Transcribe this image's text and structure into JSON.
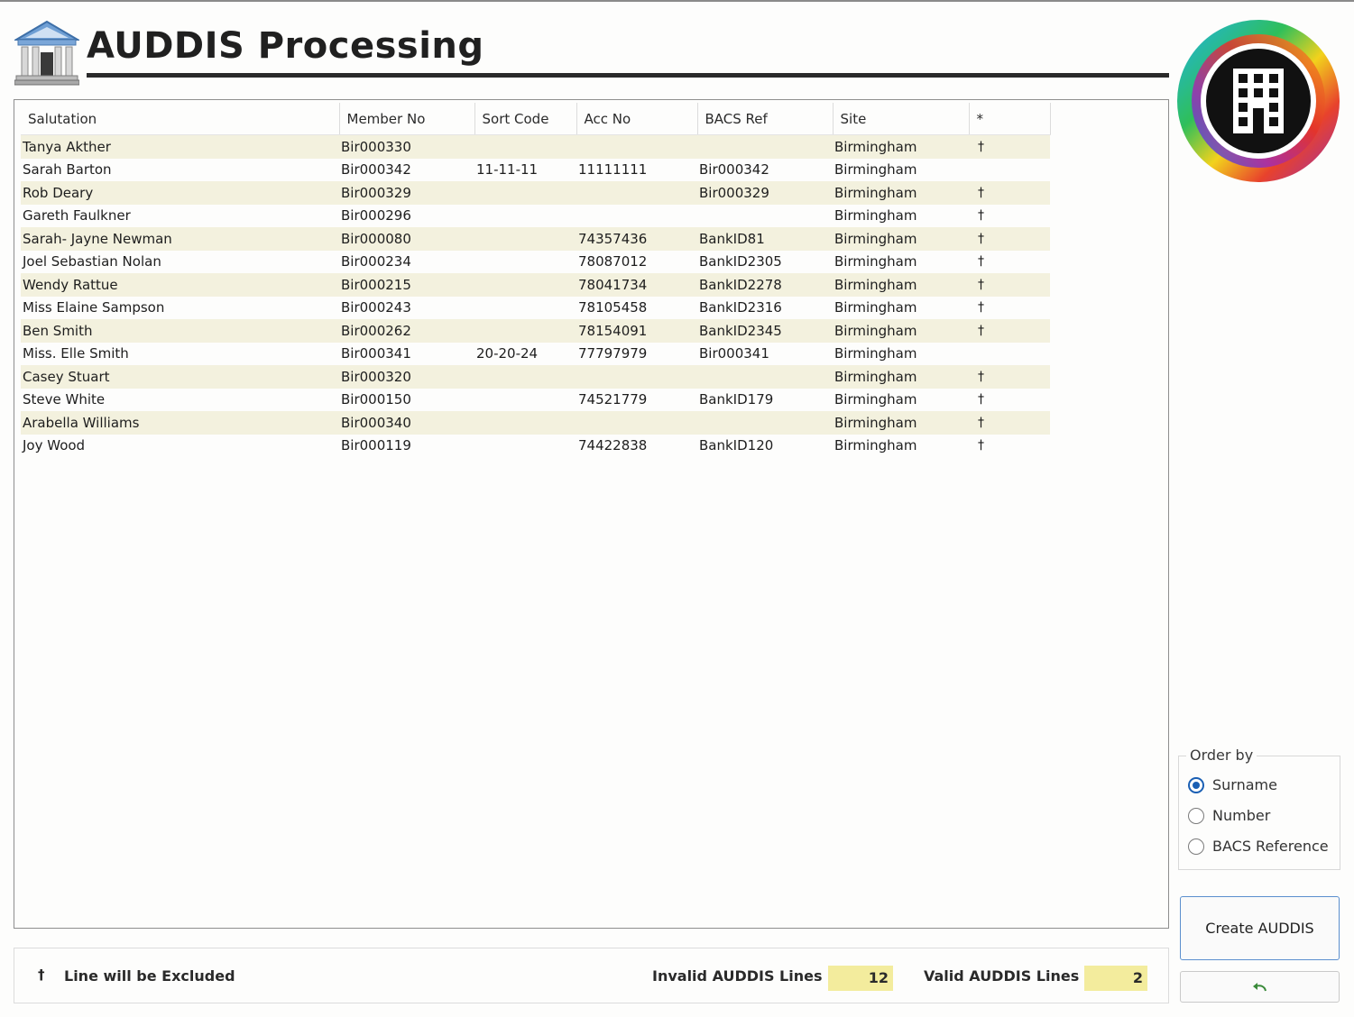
{
  "header": {
    "title": "AUDDIS Processing"
  },
  "icons": {
    "header": "bank-building-icon",
    "logo": "office-building-logo-icon",
    "undo": "undo-arrow-icon",
    "excluded": "dagger-icon"
  },
  "colors": {
    "row_alt": "#f3f1de",
    "total_box": "#f3ec9d",
    "radio_accent": "#1a5fb4",
    "button_border": "#5b8fce"
  },
  "grid": {
    "columns": [
      "Salutation",
      "Member No",
      "Sort Code",
      "Acc No",
      "BACS Ref",
      "Site",
      "*"
    ],
    "rows": [
      [
        "Tanya Akther",
        "Bir000330",
        "",
        "",
        "",
        "Birmingham",
        "†"
      ],
      [
        "Sarah Barton",
        "Bir000342",
        "11-11-11",
        "11111111",
        "Bir000342",
        "Birmingham",
        ""
      ],
      [
        "Rob Deary",
        "Bir000329",
        "",
        "",
        "Bir000329",
        "Birmingham",
        "†"
      ],
      [
        "Gareth Faulkner",
        "Bir000296",
        "",
        "",
        "",
        "Birmingham",
        "†"
      ],
      [
        "Sarah- Jayne Newman",
        "Bir000080",
        "",
        "74357436",
        "BankID81",
        "Birmingham",
        "†"
      ],
      [
        "Joel Sebastian  Nolan",
        "Bir000234",
        "",
        "78087012",
        "BankID2305",
        "Birmingham",
        "†"
      ],
      [
        "Wendy Rattue",
        "Bir000215",
        "",
        "78041734",
        "BankID2278",
        "Birmingham",
        "†"
      ],
      [
        "Miss Elaine Sampson",
        "Bir000243",
        "",
        "78105458",
        "BankID2316",
        "Birmingham",
        "†"
      ],
      [
        "Ben Smith",
        "Bir000262",
        "",
        "78154091",
        "BankID2345",
        "Birmingham",
        "†"
      ],
      [
        "Miss. Elle Smith",
        "Bir000341",
        "20-20-24",
        "77797979",
        "Bir000341",
        "Birmingham",
        ""
      ],
      [
        "Casey Stuart",
        "Bir000320",
        "",
        "",
        "",
        "Birmingham",
        "†"
      ],
      [
        "Steve White",
        "Bir000150",
        "",
        "74521779",
        "BankID179",
        "Birmingham",
        "†"
      ],
      [
        "Arabella Williams",
        "Bir000340",
        "",
        "",
        "",
        "Birmingham",
        "†"
      ],
      [
        "Joy Wood",
        "Bir000119",
        "",
        "74422838",
        "BankID120",
        "Birmingham",
        "†"
      ]
    ]
  },
  "order_by": {
    "legend": "Order by",
    "options": [
      {
        "label": "Surname",
        "checked": true
      },
      {
        "label": "Number",
        "checked": false
      },
      {
        "label": "BACS Reference",
        "checked": false
      }
    ]
  },
  "buttons": {
    "create": "Create AUDDIS"
  },
  "footer": {
    "dagger": "†",
    "legend": "Line will be Excluded",
    "invalid_label": "Invalid AUDDIS Lines",
    "invalid_value": "12",
    "valid_label": "Valid AUDDIS Lines",
    "valid_value": "2"
  }
}
